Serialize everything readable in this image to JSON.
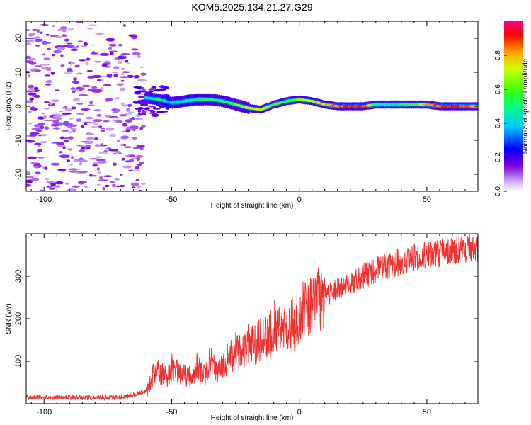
{
  "title": "KOM5.2025.134.21.27.G29",
  "chart_data": [
    {
      "type": "heatmap",
      "name": "spectrogram",
      "xlabel": "Height of straight line (km)",
      "ylabel": "Frequency (Hz)",
      "xlim": [
        -107,
        70
      ],
      "ylim": [
        -25,
        25
      ],
      "xticks": [
        -100,
        -50,
        0,
        50
      ],
      "yticks": [
        -20,
        -10,
        0,
        10,
        20
      ],
      "colorbar": {
        "label": "Normalized spectral amplitude",
        "range": [
          0,
          1
        ],
        "ticks": [
          "0.0",
          "0.2",
          "0.4",
          "0.6",
          "0.8"
        ]
      },
      "ridge": {
        "x": [
          -60,
          -55,
          -50,
          -45,
          -40,
          -35,
          -30,
          -25,
          -20,
          -15,
          -10,
          -5,
          0,
          5,
          10,
          15,
          20,
          25,
          30,
          35,
          40,
          45,
          50,
          55,
          60,
          65,
          70
        ],
        "freq": [
          2.5,
          2,
          1,
          1.5,
          2,
          2,
          1.5,
          0.5,
          -0.5,
          -1,
          0.5,
          1.5,
          2,
          1.5,
          0.5,
          0,
          0,
          0,
          0.5,
          0.5,
          0.5,
          0.5,
          0.5,
          0,
          0,
          0,
          0
        ],
        "amplitude": [
          0.4,
          0.45,
          0.4,
          0.45,
          0.5,
          0.5,
          0.55,
          0.6,
          0.7,
          0.75,
          0.6,
          0.55,
          0.65,
          0.7,
          0.8,
          0.85,
          0.9,
          0.95,
          0.5,
          0.45,
          0.5,
          0.6,
          0.8,
          0.9,
          0.95,
          0.85,
          0.8
        ]
      }
    },
    {
      "type": "line",
      "name": "snr",
      "xlabel": "Height of straight line (km)",
      "ylabel": "SNR (v/v)",
      "xlim": [
        -107,
        70
      ],
      "ylim": [
        0,
        400
      ],
      "xticks": [
        -100,
        -50,
        0,
        50
      ],
      "yticks": [
        100,
        200,
        300
      ],
      "color": "#ee3333",
      "x": [
        -107,
        -100,
        -90,
        -80,
        -70,
        -65,
        -60,
        -57,
        -55,
        -52,
        -50,
        -47,
        -45,
        -42,
        -40,
        -37,
        -35,
        -32,
        -30,
        -27,
        -25,
        -22,
        -20,
        -17,
        -15,
        -12,
        -10,
        -7,
        -5,
        -2,
        0,
        5,
        10,
        15,
        20,
        25,
        30,
        35,
        40,
        45,
        50,
        55,
        60,
        65,
        70
      ],
      "y": [
        15,
        15,
        15,
        15,
        15,
        20,
        30,
        70,
        80,
        60,
        85,
        75,
        70,
        60,
        90,
        70,
        100,
        75,
        95,
        110,
        130,
        115,
        140,
        135,
        160,
        150,
        185,
        165,
        195,
        185,
        210,
        235,
        255,
        270,
        285,
        300,
        315,
        325,
        335,
        345,
        350,
        355,
        360,
        365,
        368
      ]
    }
  ]
}
